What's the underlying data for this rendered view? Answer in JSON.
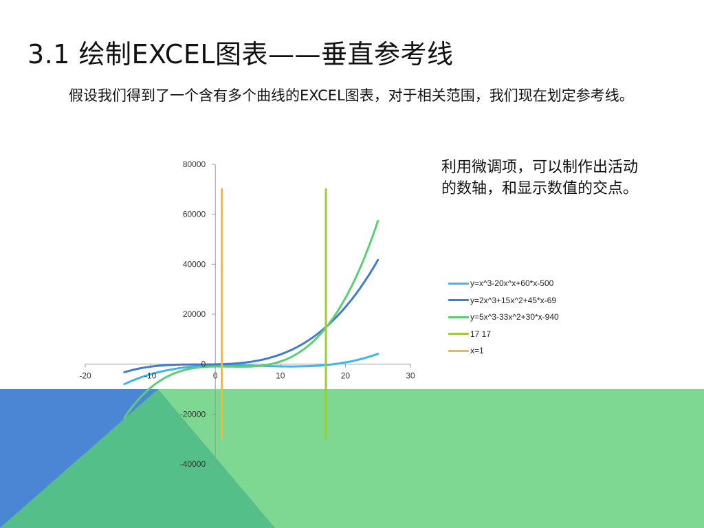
{
  "title": "3.1 绘制EXCEL图表——垂直参考线",
  "intro": "假设我们得到了一个含有多个曲线的EXCEL图表，对于相关范围，我们现在划定参考线。",
  "note": "利用微调项，可以制作出活动的数轴，和显示数值的交点。",
  "colors": {
    "blue_block": "#4a86d4",
    "green_block": "#7fd892",
    "overlap_block": "#55bf8a"
  },
  "chart_data": {
    "type": "line",
    "xlim": [
      -20,
      30
    ],
    "ylim": [
      -40000,
      80000
    ],
    "x_ticks": [
      -20,
      -10,
      0,
      10,
      20,
      30
    ],
    "y_ticks": [
      80000,
      60000,
      40000,
      20000,
      0,
      -20000,
      -40000
    ],
    "x_tick_labels": [
      "-20",
      "-10",
      "0",
      "10",
      "20",
      "30"
    ],
    "y_tick_labels": [
      "80000",
      "60000",
      "40000",
      "20000",
      "0",
      "-20000",
      "-40000"
    ],
    "grid": false,
    "legend_position": "right",
    "series": [
      {
        "name": "y=x^3-20x^x+60*x-500",
        "color": "#3db4ea",
        "curve": [
          1,
          -20,
          60,
          -500
        ],
        "x_range": [
          -14,
          25
        ]
      },
      {
        "name": "y=2x^3+15x^2+45*x-69",
        "color": "#3f7cc9",
        "curve": [
          2,
          15,
          45,
          -69
        ],
        "x_range": [
          -14,
          25
        ]
      },
      {
        "name": "y=5x^3-33x^2+30*x-940",
        "color": "#5ccd75",
        "curve": [
          5,
          -33,
          30,
          -940
        ],
        "x_range": [
          -14,
          25
        ]
      },
      {
        "name": "17 17",
        "color": "#9ccc37",
        "vertical_x": 17,
        "y_range": [
          -30000,
          70000
        ]
      },
      {
        "name": "x=1",
        "color": "#f6b733",
        "vertical_x": 1,
        "y_range": [
          -30000,
          70000
        ]
      }
    ]
  }
}
